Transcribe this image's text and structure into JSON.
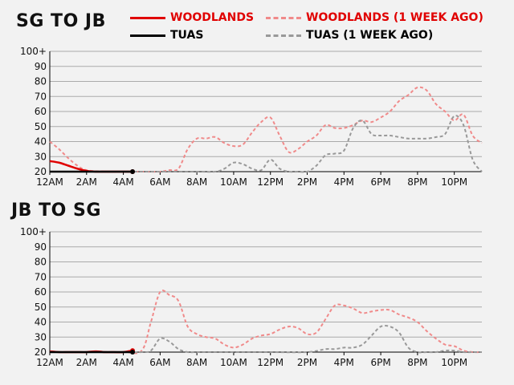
{
  "titles": {
    "top": "SG TO JB",
    "bottom": "JB TO SG"
  },
  "legend": {
    "woodlands": "WOODLANDS",
    "woodlands_prev": "WOODLANDS (1 WEEK AGO)",
    "tuas": "TUAS",
    "tuas_prev": "TUAS (1 WEEK AGO)"
  },
  "colors": {
    "woodlands": "#e00000",
    "woodlands_prev": "#f08a8a",
    "tuas": "#000000",
    "tuas_prev": "#999999",
    "grid": "#aaaaaa"
  },
  "chart_data": [
    {
      "type": "line",
      "title": "SG TO JB",
      "x_unit": "hour of day",
      "xlim": [
        0,
        23.5
      ],
      "ylim": [
        20,
        100
      ],
      "y_ticks": [
        "20",
        "30",
        "40",
        "50",
        "60",
        "70",
        "80",
        "90",
        "100+"
      ],
      "x_ticks": [
        "12AM",
        "2AM",
        "4AM",
        "6AM",
        "8AM",
        "10AM",
        "12PM",
        "2PM",
        "4PM",
        "6PM",
        "8PM",
        "10PM"
      ],
      "grid": true,
      "series": [
        {
          "name": "WOODLANDS",
          "style": "solid",
          "end_marker": true,
          "x": [
            0,
            0.5,
            1,
            1.5,
            2,
            2.5,
            3,
            3.5,
            4,
            4.5
          ],
          "y": [
            27,
            26,
            24,
            22,
            20.5,
            20,
            20,
            20,
            20,
            20
          ]
        },
        {
          "name": "TUAS",
          "style": "solid",
          "end_marker": true,
          "x": [
            0,
            1,
            2,
            3,
            4,
            4.5
          ],
          "y": [
            20,
            20,
            20,
            20,
            20,
            20
          ]
        },
        {
          "name": "WOODLANDS (1 WEEK AGO)",
          "style": "dashed",
          "x": [
            0,
            0.5,
            1,
            1.5,
            2,
            3,
            4,
            5,
            6,
            6.5,
            7,
            7.5,
            8,
            8.5,
            9,
            9.5,
            10,
            10.5,
            11,
            11.5,
            12,
            12.5,
            13,
            13.5,
            14,
            14.5,
            15,
            15.5,
            16,
            16.5,
            17,
            17.5,
            18,
            18.5,
            19,
            19.5,
            20,
            20.5,
            21,
            21.5,
            22,
            22.5,
            23,
            23.5
          ],
          "y": [
            40,
            35,
            29,
            24,
            21,
            20,
            20,
            20,
            20,
            21,
            22,
            35,
            42,
            42,
            43,
            39,
            37,
            38,
            46,
            53,
            56,
            44,
            33,
            35,
            40,
            44,
            51,
            49,
            49,
            51,
            54,
            53,
            56,
            60,
            67,
            71,
            76,
            74,
            65,
            60,
            54,
            58,
            44,
            39
          ]
        },
        {
          "name": "TUAS (1 WEEK AGO)",
          "style": "dashed",
          "x": [
            0,
            2,
            4,
            6,
            8,
            9,
            9.5,
            10,
            10.5,
            11,
            11.5,
            12,
            12.5,
            13,
            13.5,
            14,
            14.5,
            15,
            15.5,
            16,
            16.5,
            17,
            17.5,
            18,
            18.5,
            19,
            19.5,
            20,
            20.5,
            21,
            21.5,
            22,
            22.5,
            23,
            23.5
          ],
          "y": [
            20,
            20,
            20,
            20,
            20,
            20,
            22,
            26,
            25,
            22,
            21,
            28,
            22,
            20,
            20,
            20,
            24,
            31,
            32,
            34,
            49,
            54,
            45,
            44,
            44,
            43,
            42,
            42,
            42,
            43,
            45,
            57,
            51,
            28,
            20
          ]
        }
      ]
    },
    {
      "type": "line",
      "title": "JB TO SG",
      "x_unit": "hour of day",
      "xlim": [
        0,
        23.5
      ],
      "ylim": [
        20,
        100
      ],
      "y_ticks": [
        "20",
        "30",
        "40",
        "50",
        "60",
        "70",
        "80",
        "90",
        "100+"
      ],
      "x_ticks": [
        "12AM",
        "2AM",
        "4AM",
        "6AM",
        "8AM",
        "10AM",
        "12PM",
        "2PM",
        "4PM",
        "6PM",
        "8PM",
        "10PM"
      ],
      "grid": true,
      "series": [
        {
          "name": "WOODLANDS",
          "style": "solid",
          "end_marker": true,
          "x": [
            0,
            0.5,
            1,
            1.5,
            2,
            2.5,
            3,
            3.5,
            4,
            4.5
          ],
          "y": [
            20.5,
            20,
            20,
            20,
            20,
            20.5,
            20,
            20,
            20,
            21
          ]
        },
        {
          "name": "TUAS",
          "style": "solid",
          "end_marker": true,
          "x": [
            0,
            1,
            2,
            3,
            4,
            4.5
          ],
          "y": [
            20,
            20,
            20,
            20,
            20,
            20
          ]
        },
        {
          "name": "WOODLANDS (1 WEEK AGO)",
          "style": "dashed",
          "x": [
            0,
            2,
            4,
            5,
            5.5,
            6,
            6.5,
            7,
            7.5,
            8,
            8.5,
            9,
            9.5,
            10,
            10.5,
            11,
            11.5,
            12,
            12.5,
            13,
            13.5,
            14,
            14.5,
            15,
            15.5,
            16,
            16.5,
            17,
            17.5,
            18,
            18.5,
            19,
            19.5,
            20,
            20.5,
            21,
            21.5,
            22,
            22.5,
            23,
            23.5
          ],
          "y": [
            20,
            20,
            20,
            21,
            40,
            60,
            58,
            54,
            37,
            32,
            30,
            29,
            25,
            23,
            25,
            29,
            31,
            32,
            35,
            37,
            36,
            32,
            33,
            42,
            51,
            51,
            49,
            46,
            47,
            48,
            48,
            45,
            43,
            40,
            34,
            29,
            25,
            24,
            21,
            20,
            20
          ]
        },
        {
          "name": "TUAS (1 WEEK AGO)",
          "style": "dashed",
          "x": [
            0,
            2,
            4,
            5,
            5.5,
            6,
            6.5,
            7,
            7.5,
            8,
            10,
            12,
            14,
            15,
            15.5,
            16,
            16.5,
            17,
            17.5,
            18,
            18.5,
            19,
            19.5,
            20,
            20.5,
            21,
            21.5,
            22,
            22.5,
            23,
            23.5
          ],
          "y": [
            20,
            20,
            20,
            20,
            21,
            29,
            27,
            22,
            20,
            20,
            20,
            20,
            20,
            22,
            22,
            23,
            23,
            25,
            31,
            37,
            37,
            33,
            23,
            20,
            20,
            20,
            21,
            21,
            20,
            20,
            20
          ]
        }
      ]
    }
  ]
}
